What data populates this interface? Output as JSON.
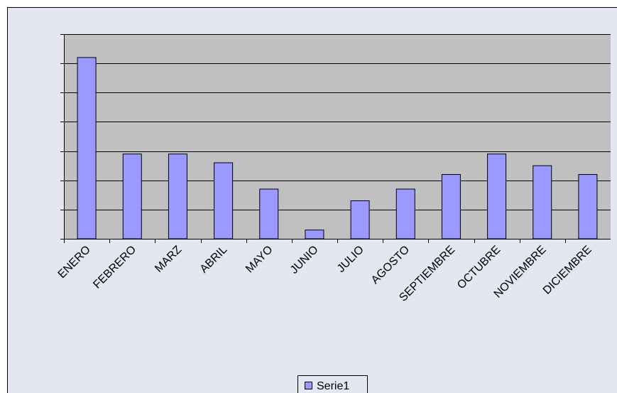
{
  "chart_data": {
    "type": "bar",
    "categories": [
      "ENERO",
      "FEBRERO",
      "MARZ",
      "ABRIL",
      "MAYO",
      "JUNIO",
      "JULIO",
      "AGOSTO",
      "SEPTIEMBRE",
      "OCTUBRE",
      "NOVIEMBRE",
      "DICIEMBRE"
    ],
    "series": [
      {
        "name": "Serie1",
        "color": "#9999ff",
        "values": [
          6.2,
          2.9,
          2.9,
          2.6,
          1.7,
          0.3,
          1.3,
          1.7,
          2.2,
          2.9,
          2.5,
          2.2
        ]
      }
    ],
    "ylim": [
      0,
      7
    ],
    "yticks": [
      0,
      1,
      2,
      3,
      4,
      5,
      6,
      7
    ],
    "grid": true,
    "legend": "bottom"
  }
}
